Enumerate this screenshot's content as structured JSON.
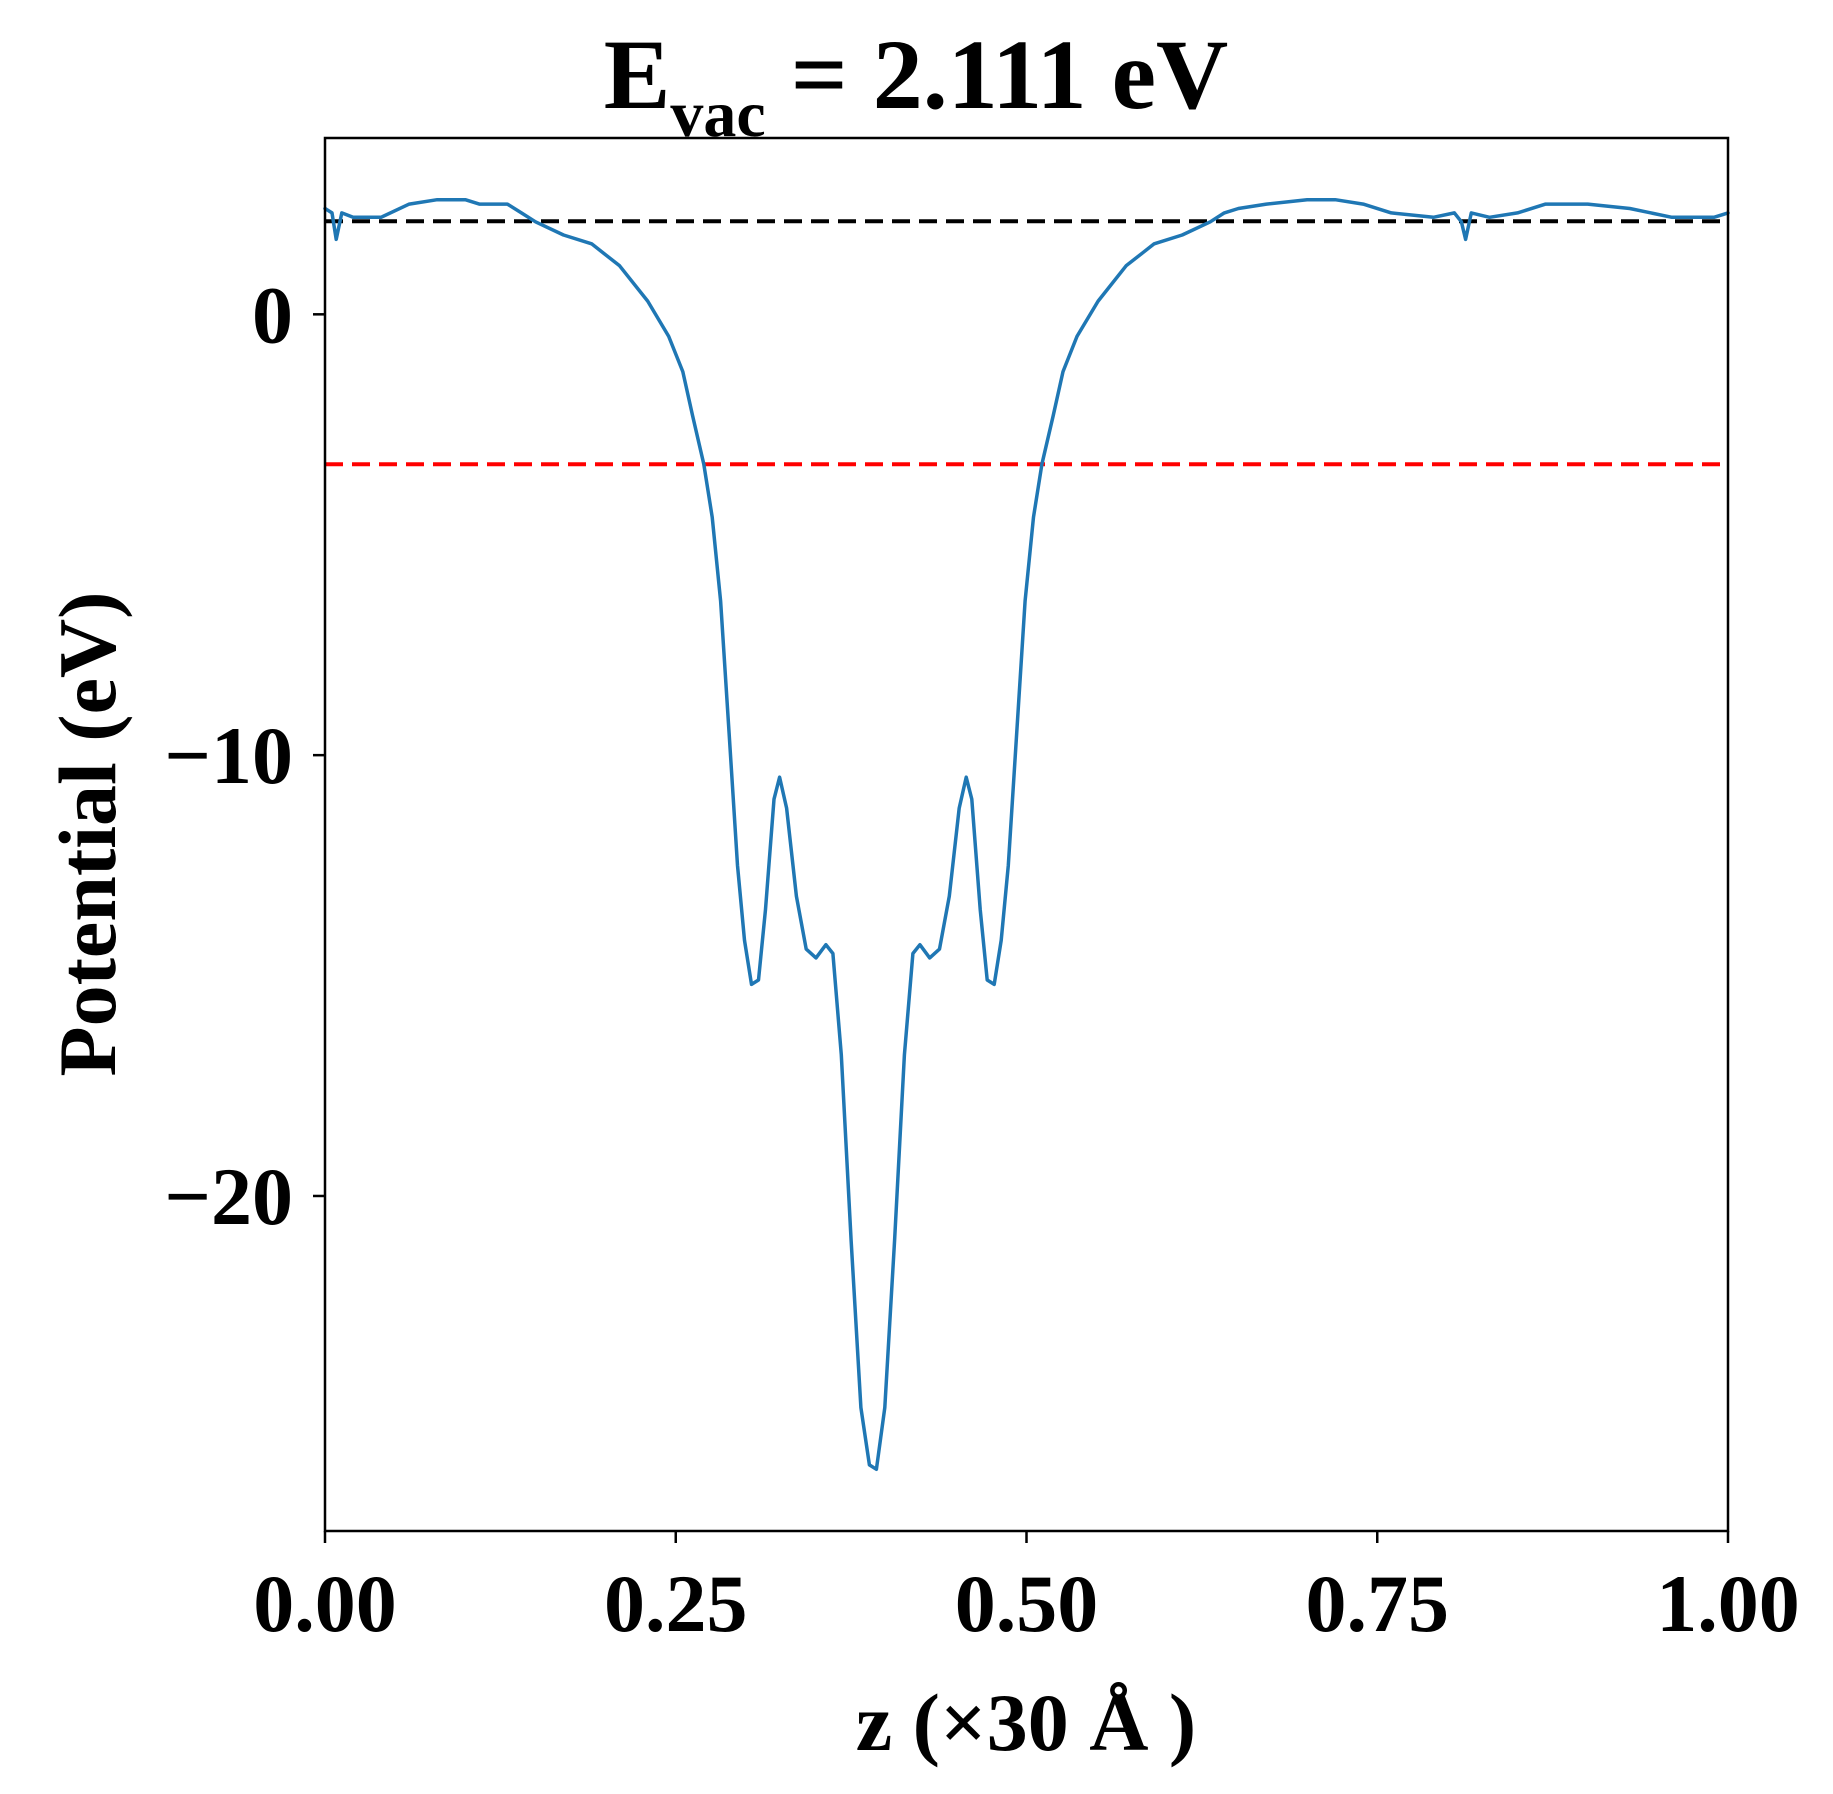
{
  "chart_data": {
    "type": "line",
    "title_main": "E",
    "title_sub": "vac",
    "title_rest": " = 2.111 eV",
    "xlabel": "z (×30 Å )",
    "ylabel": "Potential (eV)",
    "xlim": [
      0,
      1
    ],
    "ylim": [
      -27.6,
      4.0
    ],
    "xticks": [
      0.0,
      0.25,
      0.5,
      0.75,
      1.0
    ],
    "xtick_labels": [
      "0.00",
      "0.25",
      "0.50",
      "0.75",
      "1.00"
    ],
    "yticks": [
      0,
      -10,
      -20
    ],
    "ytick_labels": [
      "0",
      "−10",
      "−20"
    ],
    "grid": false,
    "reference_lines": [
      {
        "y": 2.111,
        "color": "#000000",
        "style": "dashed"
      },
      {
        "y": -3.4,
        "color": "#ff0000",
        "style": "dashed"
      }
    ],
    "series": [
      {
        "color": "#1f77b4",
        "points": [
          [
            0.0,
            2.4
          ],
          [
            0.005,
            2.3
          ],
          [
            0.008,
            1.7
          ],
          [
            0.012,
            2.3
          ],
          [
            0.02,
            2.2
          ],
          [
            0.04,
            2.2
          ],
          [
            0.06,
            2.5
          ],
          [
            0.08,
            2.6
          ],
          [
            0.1,
            2.6
          ],
          [
            0.11,
            2.5
          ],
          [
            0.13,
            2.5
          ],
          [
            0.14,
            2.3
          ],
          [
            0.15,
            2.1
          ],
          [
            0.17,
            1.8
          ],
          [
            0.19,
            1.6
          ],
          [
            0.21,
            1.1
          ],
          [
            0.23,
            0.3
          ],
          [
            0.245,
            -0.5
          ],
          [
            0.255,
            -1.3
          ],
          [
            0.262,
            -2.3
          ],
          [
            0.27,
            -3.4
          ],
          [
            0.276,
            -4.6
          ],
          [
            0.282,
            -6.5
          ],
          [
            0.288,
            -9.5
          ],
          [
            0.294,
            -12.5
          ],
          [
            0.299,
            -14.2
          ],
          [
            0.304,
            -15.2
          ],
          [
            0.309,
            -15.1
          ],
          [
            0.314,
            -13.5
          ],
          [
            0.32,
            -11.0
          ],
          [
            0.324,
            -10.5
          ],
          [
            0.329,
            -11.2
          ],
          [
            0.336,
            -13.2
          ],
          [
            0.343,
            -14.4
          ],
          [
            0.35,
            -14.6
          ],
          [
            0.357,
            -14.3
          ],
          [
            0.362,
            -14.5
          ],
          [
            0.368,
            -16.8
          ],
          [
            0.375,
            -21.0
          ],
          [
            0.382,
            -24.8
          ],
          [
            0.388,
            -26.1
          ],
          [
            0.393,
            -26.2
          ],
          [
            0.399,
            -24.8
          ],
          [
            0.406,
            -21.0
          ],
          [
            0.413,
            -16.8
          ],
          [
            0.419,
            -14.5
          ],
          [
            0.424,
            -14.3
          ],
          [
            0.431,
            -14.6
          ],
          [
            0.438,
            -14.4
          ],
          [
            0.445,
            -13.2
          ],
          [
            0.452,
            -11.2
          ],
          [
            0.457,
            -10.5
          ],
          [
            0.461,
            -11.0
          ],
          [
            0.467,
            -13.5
          ],
          [
            0.472,
            -15.1
          ],
          [
            0.477,
            -15.2
          ],
          [
            0.482,
            -14.2
          ],
          [
            0.487,
            -12.5
          ],
          [
            0.493,
            -9.5
          ],
          [
            0.499,
            -6.5
          ],
          [
            0.505,
            -4.6
          ],
          [
            0.511,
            -3.4
          ],
          [
            0.519,
            -2.3
          ],
          [
            0.526,
            -1.3
          ],
          [
            0.536,
            -0.5
          ],
          [
            0.551,
            0.3
          ],
          [
            0.571,
            1.1
          ],
          [
            0.591,
            1.6
          ],
          [
            0.611,
            1.8
          ],
          [
            0.631,
            2.1
          ],
          [
            0.641,
            2.3
          ],
          [
            0.651,
            2.4
          ],
          [
            0.671,
            2.5
          ],
          [
            0.7,
            2.6
          ],
          [
            0.72,
            2.6
          ],
          [
            0.74,
            2.5
          ],
          [
            0.76,
            2.3
          ],
          [
            0.79,
            2.2
          ],
          [
            0.805,
            2.3
          ],
          [
            0.81,
            2.1
          ],
          [
            0.813,
            1.7
          ],
          [
            0.817,
            2.3
          ],
          [
            0.83,
            2.2
          ],
          [
            0.85,
            2.3
          ],
          [
            0.87,
            2.5
          ],
          [
            0.9,
            2.5
          ],
          [
            0.93,
            2.4
          ],
          [
            0.96,
            2.2
          ],
          [
            0.99,
            2.2
          ],
          [
            1.0,
            2.3
          ]
        ]
      }
    ]
  }
}
